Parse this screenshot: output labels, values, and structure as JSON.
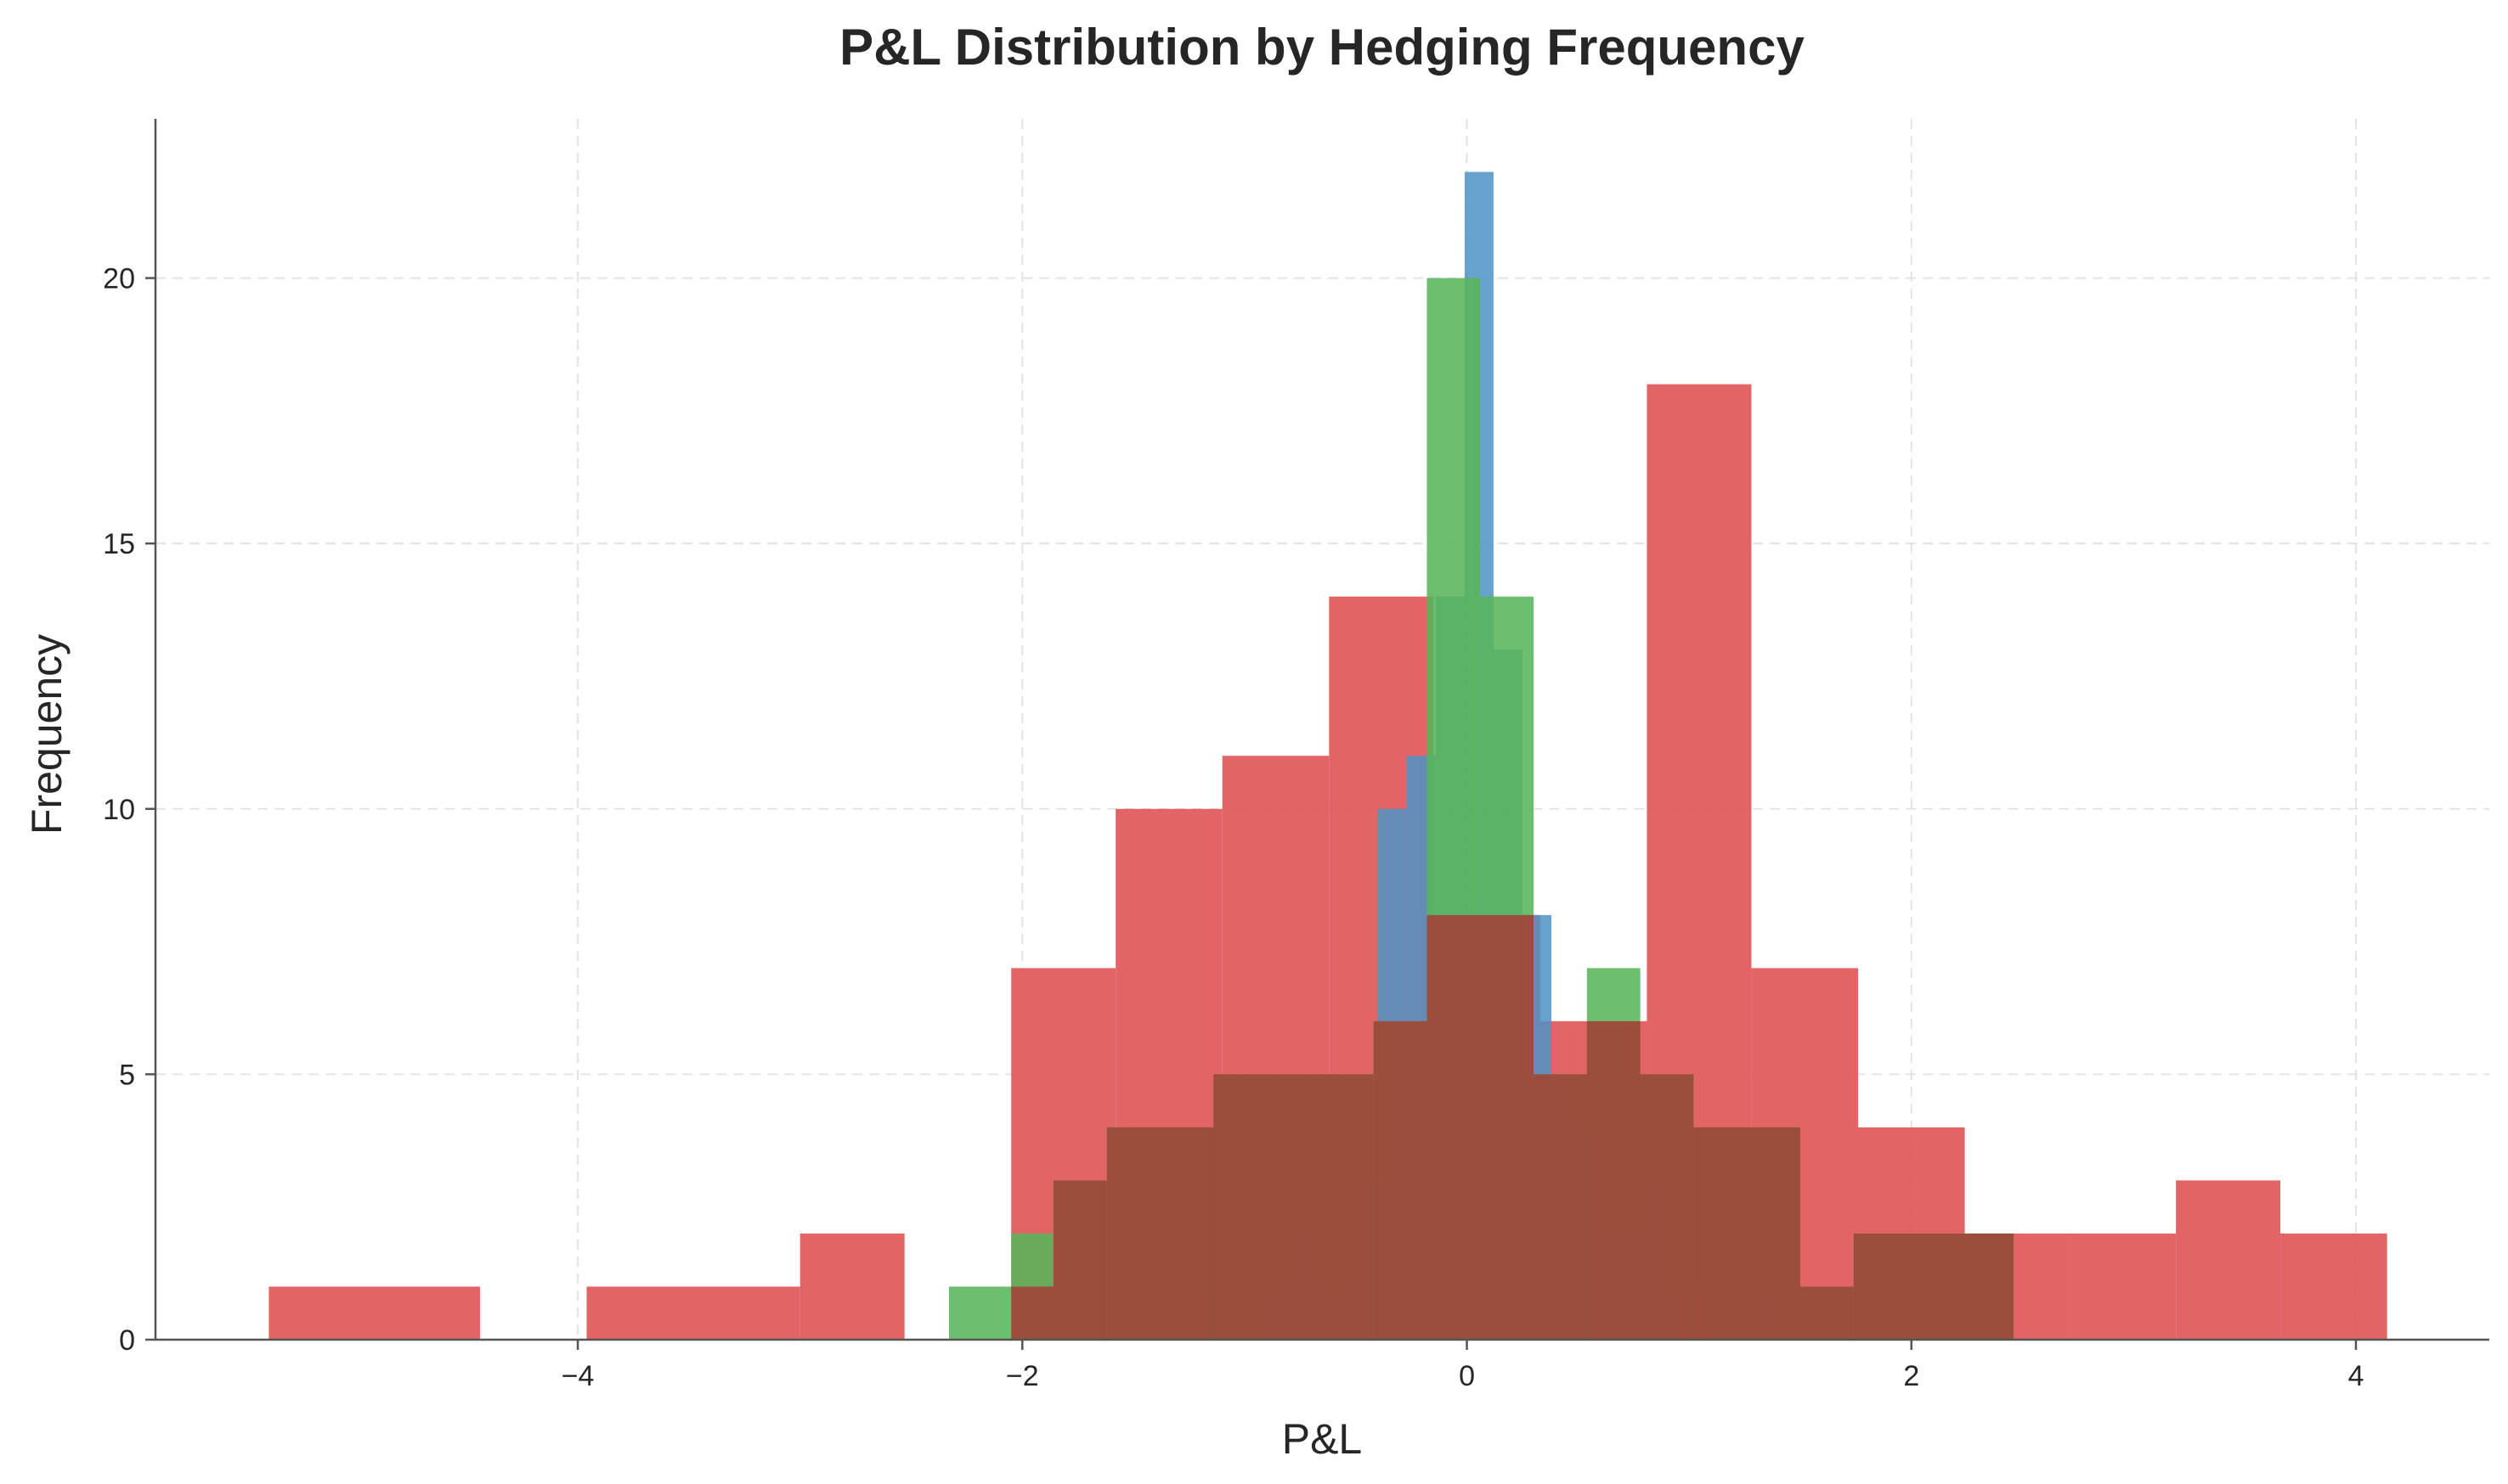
{
  "chart_data": {
    "type": "bar",
    "title": "P&L Distribution by Hedging Frequency",
    "xlabel": "P&L",
    "ylabel": "Frequency",
    "xlim": [
      -5.9,
      4.6
    ],
    "ylim": [
      0,
      23
    ],
    "xticks": [
      -4,
      -2,
      0,
      2,
      4
    ],
    "yticks": [
      0,
      5,
      10,
      15,
      20
    ],
    "xtick_labels": [
      "−4",
      "−2",
      "0",
      "2",
      "4"
    ],
    "ytick_labels": [
      "0",
      "5",
      "10",
      "15",
      "20"
    ],
    "grid": true,
    "legend": "none",
    "series": [
      {
        "color": "#e15759",
        "opacity": 0.92,
        "bins": [
          {
            "x0": -5.39,
            "x1": -4.44,
            "count": 1
          },
          {
            "x0": -3.96,
            "x1": -3.0,
            "count": 1
          },
          {
            "x0": -3.0,
            "x1": -2.53,
            "count": 2
          },
          {
            "x0": -2.05,
            "x1": -1.58,
            "count": 7
          },
          {
            "x0": -1.58,
            "x1": -1.1,
            "count": 10
          },
          {
            "x0": -1.1,
            "x1": -0.62,
            "count": 11
          },
          {
            "x0": -0.62,
            "x1": -0.15,
            "count": 14
          },
          {
            "x0": -0.15,
            "x1": 0.33,
            "count": 8
          },
          {
            "x0": 0.33,
            "x1": 0.81,
            "count": 6
          },
          {
            "x0": 0.81,
            "x1": 1.28,
            "count": 18
          },
          {
            "x0": 1.28,
            "x1": 1.76,
            "count": 7
          },
          {
            "x0": 1.76,
            "x1": 2.24,
            "count": 4
          },
          {
            "x0": 2.24,
            "x1": 2.71,
            "count": 2
          },
          {
            "x0": 2.71,
            "x1": 3.19,
            "count": 2
          },
          {
            "x0": 3.19,
            "x1": 3.66,
            "count": 3
          },
          {
            "x0": 3.66,
            "x1": 4.14,
            "count": 2
          }
        ]
      },
      {
        "color": "#4e93c4",
        "opacity": 0.85,
        "bins": [
          {
            "x0": -1.18,
            "x1": -1.05,
            "count": 1
          },
          {
            "x0": -0.92,
            "x1": -0.79,
            "count": 1
          },
          {
            "x0": -0.79,
            "x1": -0.66,
            "count": 2
          },
          {
            "x0": -0.66,
            "x1": -0.53,
            "count": 1
          },
          {
            "x0": -0.53,
            "x1": -0.4,
            "count": 3
          },
          {
            "x0": -0.4,
            "x1": -0.27,
            "count": 10
          },
          {
            "x0": -0.27,
            "x1": -0.14,
            "count": 11
          },
          {
            "x0": -0.14,
            "x1": -0.01,
            "count": 14
          },
          {
            "x0": -0.01,
            "x1": 0.12,
            "count": 22
          },
          {
            "x0": 0.12,
            "x1": 0.25,
            "count": 13
          },
          {
            "x0": 0.25,
            "x1": 0.38,
            "count": 8
          },
          {
            "x0": 0.38,
            "x1": 0.51,
            "count": 5
          },
          {
            "x0": 0.51,
            "x1": 0.64,
            "count": 4
          },
          {
            "x0": 0.64,
            "x1": 0.77,
            "count": 2
          },
          {
            "x0": 0.77,
            "x1": 0.9,
            "count": 3
          },
          {
            "x0": 0.9,
            "x1": 1.03,
            "count": 1
          },
          {
            "x0": 1.3,
            "x1": 1.43,
            "count": 1
          }
        ]
      },
      {
        "color": "#59b55a",
        "opacity": 0.88,
        "bins": [
          {
            "x0": -2.33,
            "x1": -2.05,
            "count": 1
          },
          {
            "x0": -2.05,
            "x1": -1.86,
            "count": 2
          },
          {
            "x0": -1.86,
            "x1": -1.62,
            "count": 3
          },
          {
            "x0": -1.62,
            "x1": -1.14,
            "count": 4
          },
          {
            "x0": -1.14,
            "x1": -0.66,
            "count": 5
          },
          {
            "x0": -0.66,
            "x1": -0.42,
            "count": 5
          },
          {
            "x0": -0.42,
            "x1": -0.18,
            "count": 6
          },
          {
            "x0": -0.18,
            "x1": 0.06,
            "count": 20
          },
          {
            "x0": 0.06,
            "x1": 0.3,
            "count": 14
          },
          {
            "x0": 0.3,
            "x1": 0.54,
            "count": 5
          },
          {
            "x0": 0.54,
            "x1": 0.78,
            "count": 7
          },
          {
            "x0": 0.78,
            "x1": 1.02,
            "count": 5
          },
          {
            "x0": 1.02,
            "x1": 1.5,
            "count": 4
          },
          {
            "x0": 1.5,
            "x1": 1.74,
            "count": 1
          },
          {
            "x0": 1.74,
            "x1": 2.46,
            "count": 2
          }
        ]
      },
      {
        "color": "#a1453a",
        "opacity": 0.92,
        "bins": [
          {
            "x0": -2.05,
            "x1": -1.86,
            "count": 1
          },
          {
            "x0": -1.86,
            "x1": -1.62,
            "count": 3
          },
          {
            "x0": -1.62,
            "x1": -1.14,
            "count": 4
          },
          {
            "x0": -1.14,
            "x1": -0.42,
            "count": 5
          },
          {
            "x0": -0.42,
            "x1": -0.18,
            "count": 6
          },
          {
            "x0": -0.18,
            "x1": 0.3,
            "count": 8
          },
          {
            "x0": 0.3,
            "x1": 0.54,
            "count": 5
          },
          {
            "x0": 0.54,
            "x1": 0.78,
            "count": 6
          },
          {
            "x0": 0.78,
            "x1": 1.02,
            "count": 5
          },
          {
            "x0": 1.02,
            "x1": 1.5,
            "count": 4
          },
          {
            "x0": 1.5,
            "x1": 1.74,
            "count": 1
          },
          {
            "x0": 1.74,
            "x1": 2.46,
            "count": 2
          }
        ]
      }
    ]
  }
}
